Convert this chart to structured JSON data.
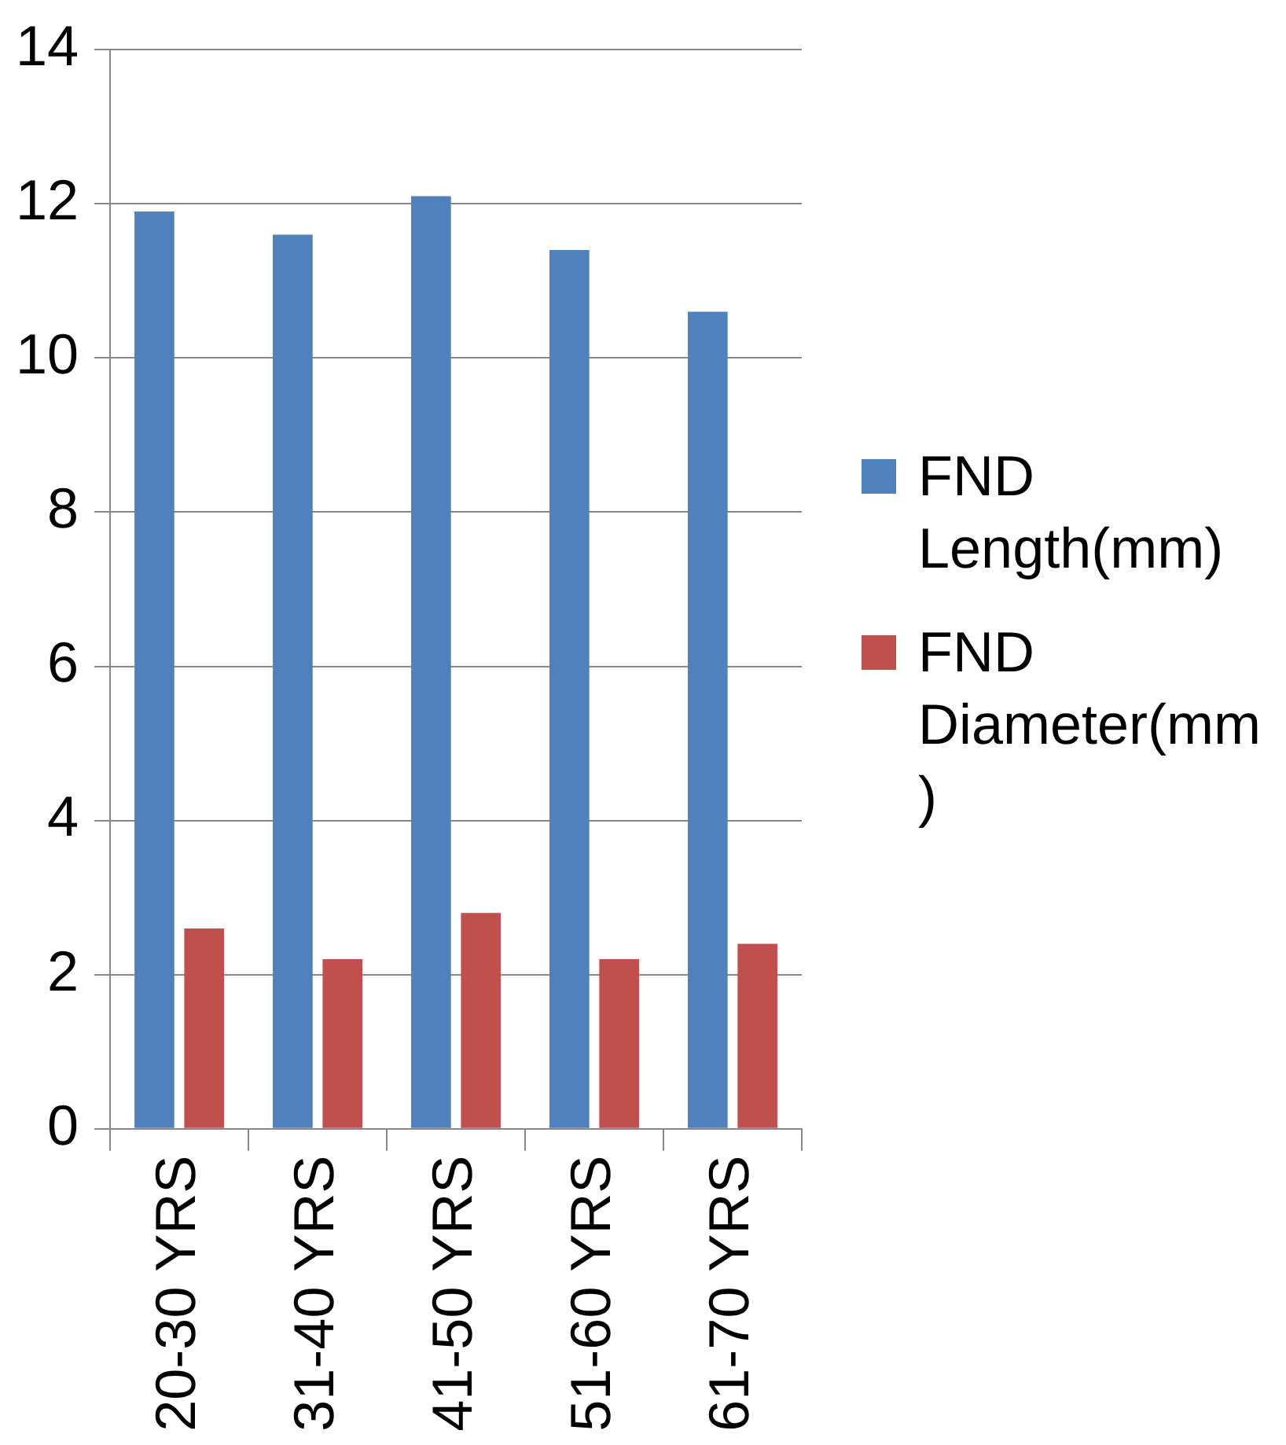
{
  "chart_data": {
    "type": "bar",
    "categories": [
      "20-30 YRS",
      "31-40 YRS",
      "41-50 YRS",
      "51-60 YRS",
      "61-70 YRS"
    ],
    "series": [
      {
        "name": "FND Length(mm)",
        "color": "#4f81bd",
        "values": [
          11.9,
          11.6,
          12.1,
          11.4,
          10.6
        ]
      },
      {
        "name": "FND Diameter(mm)",
        "color": "#c0504d",
        "values": [
          2.6,
          2.2,
          2.8,
          2.2,
          2.4
        ]
      }
    ],
    "ylim": [
      0,
      14
    ],
    "yticks": [
      0,
      2,
      4,
      6,
      8,
      10,
      12,
      14
    ],
    "grid": "y",
    "legend": "right"
  }
}
